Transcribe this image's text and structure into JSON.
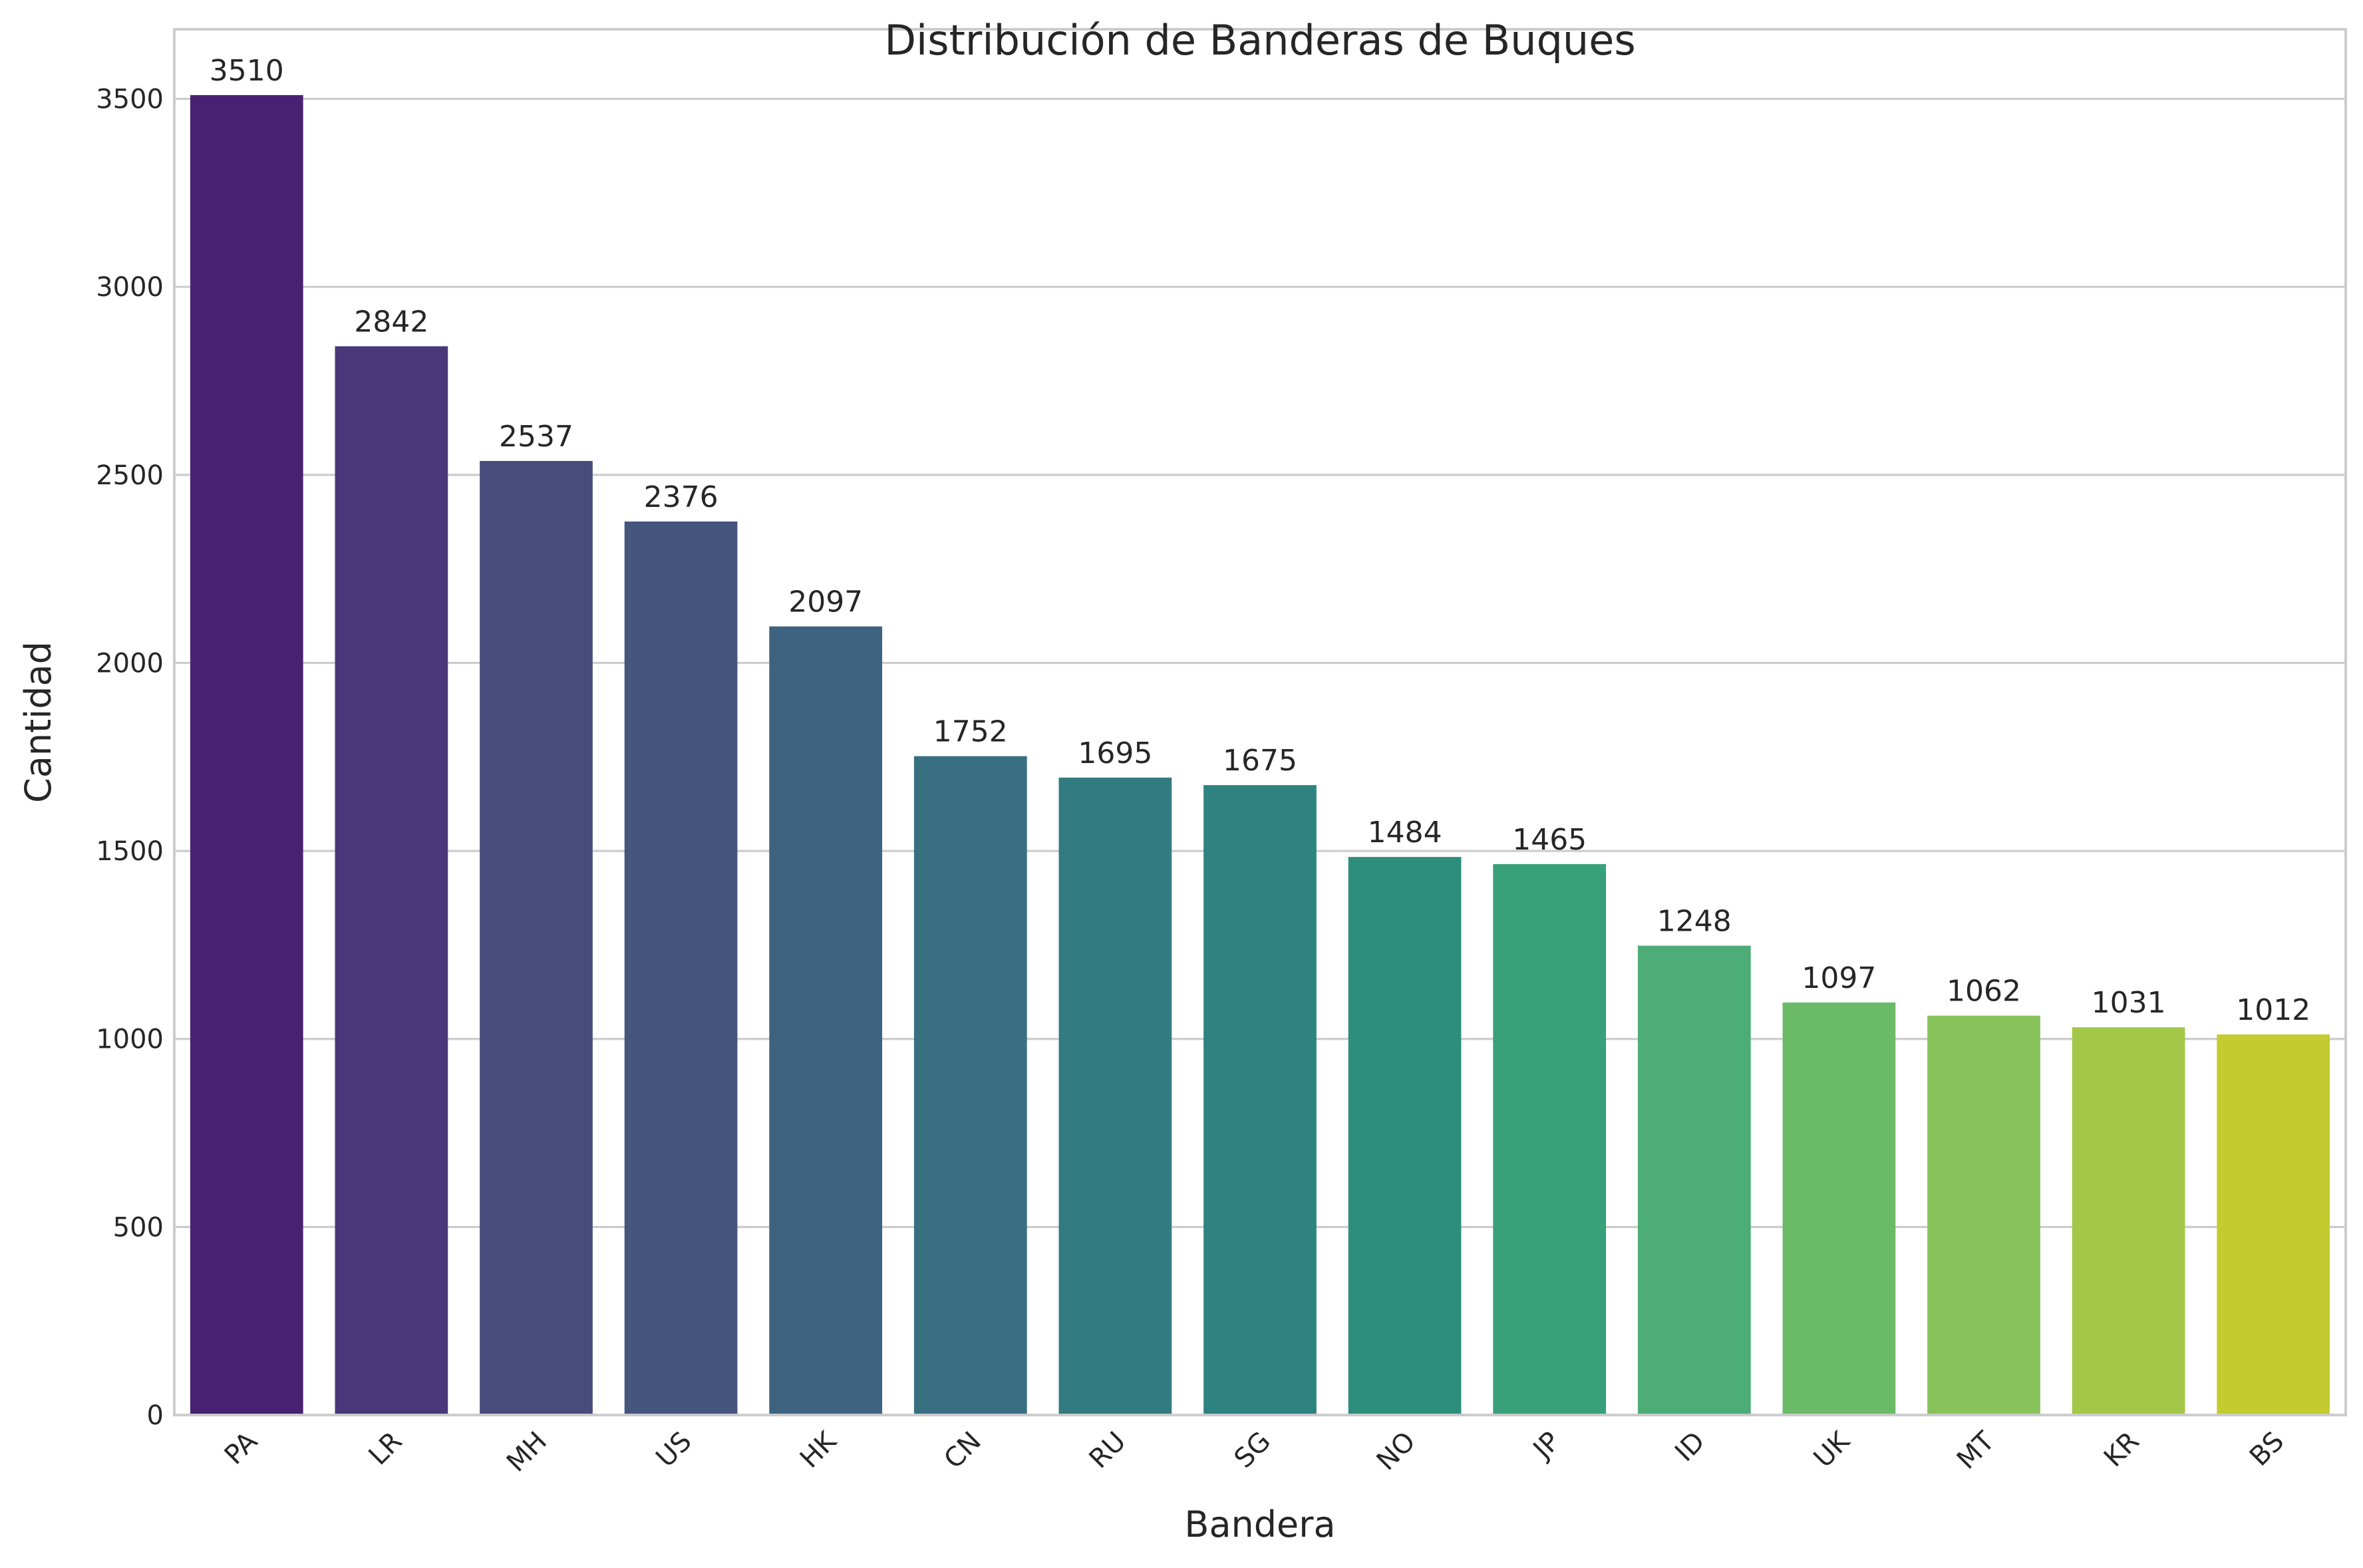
{
  "chart_data": {
    "type": "bar",
    "title": "Distribución de Banderas de Buques",
    "xlabel": "Bandera",
    "ylabel": "Cantidad",
    "categories": [
      "PA",
      "LR",
      "MH",
      "US",
      "HK",
      "CN",
      "RU",
      "SG",
      "NO",
      "JP",
      "ID",
      "UK",
      "MT",
      "KR",
      "BS"
    ],
    "values": [
      3510,
      2842,
      2537,
      2376,
      2097,
      1752,
      1695,
      1675,
      1484,
      1465,
      1248,
      1097,
      1062,
      1031,
      1012
    ],
    "data_labels": [
      "3510",
      "2842",
      "2537",
      "2376",
      "2097",
      "1752",
      "1695",
      "1675",
      "1484",
      "1465",
      "1248",
      "1097",
      "1062",
      "1031",
      "1012"
    ],
    "colors": [
      "#482173",
      "#48387a",
      "#484c7c",
      "#44567e",
      "#3e6380",
      "#386f81",
      "#327b80",
      "#2e8380",
      "#2d8f7b",
      "#38a07a",
      "#4dad76",
      "#6bba68",
      "#88c25b",
      "#a3c747",
      "#c3cb30"
    ],
    "yticks": [
      0,
      500,
      1000,
      1500,
      2000,
      2500,
      3000,
      3500
    ],
    "ytick_labels": [
      "0",
      "500",
      "1000",
      "1500",
      "2000",
      "2500",
      "3000",
      "3500"
    ],
    "ylim": [
      0,
      3685
    ],
    "grid": true,
    "grid_axis": "y",
    "legend": false,
    "xtick_rotation": 45,
    "grid_color": "#cccccc",
    "text_color": "#262626"
  }
}
